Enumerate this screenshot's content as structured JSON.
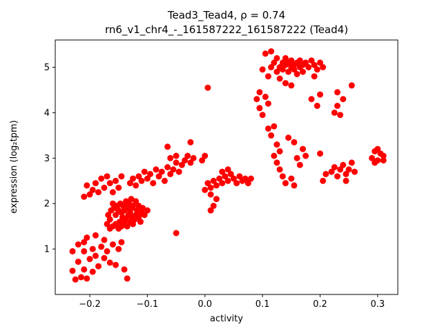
{
  "figure": {
    "title_line1": "Tead3_Tead4, ρ = 0.74",
    "title_line2": "rn6_v1_chr4_-_161587222_161587222 (Tead4)"
  },
  "chart_data": {
    "type": "scatter",
    "title": "Tead3_Tead4, ρ = 0.74",
    "subtitle": "rn6_v1_chr4_-_161587222_161587222 (Tead4)",
    "xlabel": "activity",
    "ylabel": "expression (log₂tpm)",
    "xlim": [
      -0.26,
      0.335
    ],
    "ylim": [
      0.0,
      5.6
    ],
    "xticks": [
      -0.2,
      -0.1,
      0.0,
      0.1,
      0.2,
      0.3
    ],
    "yticks": [
      1,
      2,
      3,
      4,
      5
    ],
    "grid": false,
    "legend": null,
    "marker": "circle",
    "marker_color": "#ff0000",
    "marker_radius_px": 4.5,
    "points": [
      [
        -0.225,
        0.33
      ],
      [
        -0.215,
        0.38
      ],
      [
        -0.205,
        0.35
      ],
      [
        -0.23,
        0.52
      ],
      [
        -0.21,
        0.55
      ],
      [
        -0.195,
        0.5
      ],
      [
        -0.185,
        0.62
      ],
      [
        -0.22,
        0.72
      ],
      [
        -0.2,
        0.78
      ],
      [
        -0.19,
        0.85
      ],
      [
        -0.175,
        0.8
      ],
      [
        -0.165,
        0.7
      ],
      [
        -0.155,
        0.65
      ],
      [
        -0.21,
        0.95
      ],
      [
        -0.195,
        1.0
      ],
      [
        -0.18,
        1.05
      ],
      [
        -0.17,
        0.95
      ],
      [
        -0.16,
        1.1
      ],
      [
        -0.15,
        1.0
      ],
      [
        -0.14,
        0.55
      ],
      [
        -0.135,
        0.35
      ],
      [
        -0.22,
        1.1
      ],
      [
        -0.23,
        0.95
      ],
      [
        -0.175,
        1.2
      ],
      [
        -0.145,
        1.15
      ],
      [
        -0.205,
        1.25
      ],
      [
        -0.19,
        1.3
      ],
      [
        -0.21,
        1.15
      ],
      [
        -0.165,
        1.45
      ],
      [
        -0.16,
        1.5
      ],
      [
        -0.155,
        1.55
      ],
      [
        -0.15,
        1.45
      ],
      [
        -0.148,
        1.6
      ],
      [
        -0.145,
        1.5
      ],
      [
        -0.143,
        1.7
      ],
      [
        -0.14,
        1.55
      ],
      [
        -0.138,
        1.65
      ],
      [
        -0.135,
        1.5
      ],
      [
        -0.133,
        1.75
      ],
      [
        -0.13,
        1.6
      ],
      [
        -0.128,
        1.7
      ],
      [
        -0.125,
        1.55
      ],
      [
        -0.145,
        1.8
      ],
      [
        -0.14,
        1.85
      ],
      [
        -0.135,
        1.9
      ],
      [
        -0.13,
        1.8
      ],
      [
        -0.127,
        1.9
      ],
      [
        -0.155,
        1.75
      ],
      [
        -0.15,
        1.85
      ],
      [
        -0.158,
        1.9
      ],
      [
        -0.152,
        1.95
      ],
      [
        -0.147,
        2.0
      ],
      [
        -0.142,
        1.95
      ],
      [
        -0.137,
        2.05
      ],
      [
        -0.132,
        2.0
      ],
      [
        -0.122,
        1.65
      ],
      [
        -0.12,
        1.75
      ],
      [
        -0.118,
        1.85
      ],
      [
        -0.115,
        1.7
      ],
      [
        -0.112,
        1.6
      ],
      [
        -0.11,
        1.8
      ],
      [
        -0.165,
        1.65
      ],
      [
        -0.17,
        1.55
      ],
      [
        -0.168,
        1.75
      ],
      [
        -0.163,
        1.85
      ],
      [
        -0.16,
        2.0
      ],
      [
        -0.125,
        1.95
      ],
      [
        -0.12,
        2.05
      ],
      [
        -0.115,
        1.95
      ],
      [
        -0.108,
        1.9
      ],
      [
        -0.105,
        1.75
      ],
      [
        -0.1,
        1.85
      ],
      [
        -0.128,
        2.1
      ],
      [
        -0.21,
        2.15
      ],
      [
        -0.2,
        2.2
      ],
      [
        -0.195,
        2.3
      ],
      [
        -0.205,
        2.4
      ],
      [
        -0.19,
        2.45
      ],
      [
        -0.185,
        2.25
      ],
      [
        -0.18,
        2.55
      ],
      [
        -0.175,
        2.35
      ],
      [
        -0.17,
        2.6
      ],
      [
        -0.165,
        2.45
      ],
      [
        -0.16,
        2.25
      ],
      [
        -0.155,
        2.5
      ],
      [
        -0.15,
        2.35
      ],
      [
        -0.145,
        2.6
      ],
      [
        -0.13,
        2.45
      ],
      [
        -0.125,
        2.55
      ],
      [
        -0.12,
        2.4
      ],
      [
        -0.115,
        2.6
      ],
      [
        -0.11,
        2.5
      ],
      [
        -0.105,
        2.7
      ],
      [
        -0.1,
        2.55
      ],
      [
        -0.095,
        2.65
      ],
      [
        -0.09,
        2.45
      ],
      [
        -0.085,
        2.75
      ],
      [
        -0.08,
        2.6
      ],
      [
        -0.075,
        2.7
      ],
      [
        -0.07,
        2.5
      ],
      [
        -0.065,
        2.8
      ],
      [
        -0.06,
        2.65
      ],
      [
        -0.055,
        2.75
      ],
      [
        -0.05,
        2.9
      ],
      [
        -0.045,
        2.7
      ],
      [
        -0.04,
        2.85
      ],
      [
        -0.06,
        3.0
      ],
      [
        -0.05,
        3.05
      ],
      [
        -0.035,
        2.95
      ],
      [
        -0.03,
        3.05
      ],
      [
        -0.025,
        2.9
      ],
      [
        -0.02,
        3.0
      ],
      [
        -0.025,
        3.35
      ],
      [
        -0.065,
        3.25
      ],
      [
        -0.05,
        1.35
      ],
      [
        0.0,
        2.3
      ],
      [
        0.005,
        2.45
      ],
      [
        0.01,
        2.35
      ],
      [
        0.015,
        2.5
      ],
      [
        0.02,
        2.4
      ],
      [
        0.025,
        2.55
      ],
      [
        0.03,
        2.45
      ],
      [
        0.035,
        2.6
      ],
      [
        0.04,
        2.5
      ],
      [
        0.045,
        2.65
      ],
      [
        0.05,
        2.55
      ],
      [
        0.055,
        2.45
      ],
      [
        0.06,
        2.6
      ],
      [
        0.065,
        2.5
      ],
      [
        0.07,
        2.55
      ],
      [
        0.075,
        2.45
      ],
      [
        0.08,
        2.55
      ],
      [
        0.01,
        2.2
      ],
      [
        0.02,
        2.1
      ],
      [
        0.015,
        1.95
      ],
      [
        0.01,
        1.85
      ],
      [
        0.03,
        2.7
      ],
      [
        0.04,
        2.75
      ],
      [
        0.0,
        3.05
      ],
      [
        -0.005,
        2.95
      ],
      [
        0.005,
        4.55
      ],
      [
        0.1,
        4.95
      ],
      [
        0.105,
        5.3
      ],
      [
        0.11,
        4.8
      ],
      [
        0.115,
        5.0
      ],
      [
        0.12,
        5.1
      ],
      [
        0.125,
        4.9
      ],
      [
        0.125,
        5.2
      ],
      [
        0.13,
        5.0
      ],
      [
        0.13,
        4.75
      ],
      [
        0.135,
        5.1
      ],
      [
        0.135,
        4.95
      ],
      [
        0.14,
        5.05
      ],
      [
        0.14,
        5.2
      ],
      [
        0.145,
        4.9
      ],
      [
        0.145,
        5.1
      ],
      [
        0.15,
        5.0
      ],
      [
        0.15,
        5.15
      ],
      [
        0.155,
        4.95
      ],
      [
        0.155,
        5.05
      ],
      [
        0.16,
        5.1
      ],
      [
        0.16,
        4.85
      ],
      [
        0.165,
        5.0
      ],
      [
        0.165,
        5.15
      ],
      [
        0.17,
        5.05
      ],
      [
        0.17,
        4.9
      ],
      [
        0.175,
        5.1
      ],
      [
        0.18,
        5.0
      ],
      [
        0.185,
        5.15
      ],
      [
        0.19,
        5.05
      ],
      [
        0.195,
        4.95
      ],
      [
        0.2,
        5.1
      ],
      [
        0.205,
        5.0
      ],
      [
        0.14,
        4.65
      ],
      [
        0.15,
        4.6
      ],
      [
        0.19,
        4.8
      ],
      [
        0.115,
        5.35
      ],
      [
        0.09,
        4.3
      ],
      [
        0.095,
        4.1
      ],
      [
        0.1,
        3.95
      ],
      [
        0.105,
        4.35
      ],
      [
        0.11,
        4.2
      ],
      [
        0.095,
        4.45
      ],
      [
        0.11,
        3.65
      ],
      [
        0.115,
        3.5
      ],
      [
        0.12,
        3.7
      ],
      [
        0.125,
        3.3
      ],
      [
        0.13,
        3.15
      ],
      [
        0.12,
        3.05
      ],
      [
        0.125,
        2.9
      ],
      [
        0.13,
        2.75
      ],
      [
        0.135,
        2.6
      ],
      [
        0.14,
        2.45
      ],
      [
        0.15,
        2.55
      ],
      [
        0.155,
        2.4
      ],
      [
        0.16,
        3.0
      ],
      [
        0.165,
        2.85
      ],
      [
        0.17,
        3.2
      ],
      [
        0.175,
        3.05
      ],
      [
        0.155,
        3.35
      ],
      [
        0.145,
        3.45
      ],
      [
        0.185,
        4.3
      ],
      [
        0.195,
        4.15
      ],
      [
        0.2,
        4.4
      ],
      [
        0.2,
        3.1
      ],
      [
        0.205,
        2.5
      ],
      [
        0.21,
        2.65
      ],
      [
        0.22,
        2.7
      ],
      [
        0.225,
        2.8
      ],
      [
        0.23,
        2.6
      ],
      [
        0.235,
        2.75
      ],
      [
        0.24,
        2.85
      ],
      [
        0.245,
        2.65
      ],
      [
        0.25,
        2.75
      ],
      [
        0.255,
        2.9
      ],
      [
        0.26,
        2.7
      ],
      [
        0.245,
        2.5
      ],
      [
        0.225,
        4.0
      ],
      [
        0.23,
        4.15
      ],
      [
        0.235,
        3.95
      ],
      [
        0.24,
        4.3
      ],
      [
        0.255,
        4.6
      ],
      [
        0.23,
        4.45
      ],
      [
        0.29,
        3.0
      ],
      [
        0.295,
        3.15
      ],
      [
        0.3,
        2.95
      ],
      [
        0.305,
        3.1
      ],
      [
        0.31,
        3.05
      ],
      [
        0.3,
        3.2
      ],
      [
        0.295,
        2.9
      ],
      [
        0.31,
        2.95
      ]
    ]
  }
}
